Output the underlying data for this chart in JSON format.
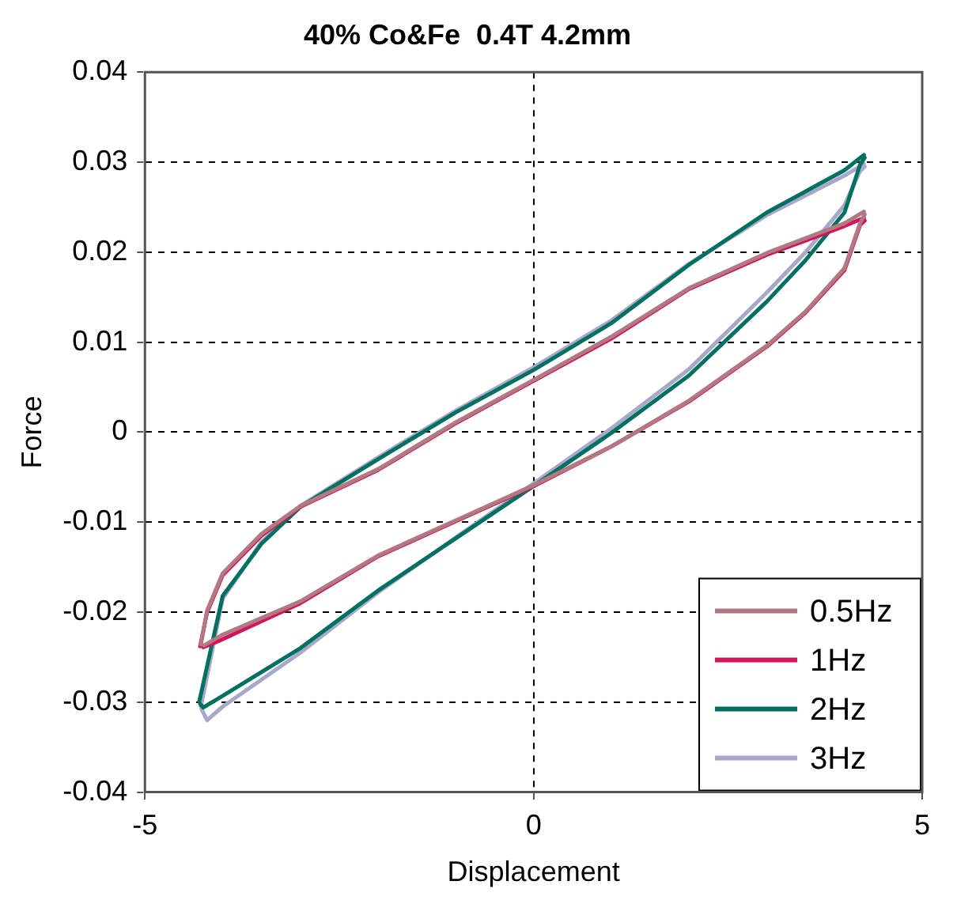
{
  "chart_data": {
    "type": "line",
    "title": "40% Co&Fe  0.4T 4.2mm",
    "xlabel": "Displacement",
    "ylabel": "Force",
    "xlim": [
      -5,
      5
    ],
    "xticks": [
      -5,
      0,
      5
    ],
    "ylim": [
      -0.04,
      0.04
    ],
    "yticks": [
      -0.04,
      -0.03,
      -0.02,
      -0.01,
      0,
      0.01,
      0.02,
      0.03,
      0.04
    ],
    "grid": true,
    "legend": "bottom right",
    "marker": "none",
    "line_style": "solid",
    "series": [
      {
        "name": "0.5Hz",
        "color": "#b07a80",
        "x": [
          -4.28,
          -4.2,
          -4,
          -3.5,
          -3,
          -2,
          -1,
          0,
          1,
          2,
          3,
          4,
          4.25
        ],
        "values": [
          -0.0236,
          -0.0198,
          -0.0157,
          -0.0113,
          -0.0082,
          -0.0041,
          0.0011,
          0.0058,
          0.0106,
          0.016,
          0.0199,
          0.0232,
          0.0245
        ]
      },
      {
        "color": "#b07a80",
        "x": [
          -4.24,
          -4,
          -3,
          -2,
          -1,
          0,
          1,
          2,
          3,
          3.5,
          4,
          4.2,
          4.26
        ],
        "values": [
          -0.0237,
          -0.0225,
          -0.0188,
          -0.0137,
          -0.0098,
          -0.0059,
          -0.0016,
          0.0035,
          0.0096,
          0.0134,
          0.0182,
          0.0232,
          0.0242
        ]
      },
      {
        "name": "1Hz",
        "color": "#d4145a",
        "x": [
          -4.29,
          -4.2,
          -4,
          -3.5,
          -3,
          -2,
          -1,
          0,
          1,
          2,
          3,
          4,
          4.25
        ],
        "values": [
          -0.0238,
          -0.02,
          -0.0159,
          -0.0115,
          -0.0083,
          -0.0042,
          0.001,
          0.0057,
          0.0104,
          0.0159,
          0.0197,
          0.0229,
          0.0238
        ]
      },
      {
        "color": "#d4145a",
        "x": [
          -4.25,
          -4.05,
          -3,
          -2,
          -1,
          0,
          1,
          2,
          3,
          3.5,
          4,
          4.2,
          4.26
        ],
        "values": [
          -0.0239,
          -0.0232,
          -0.019,
          -0.0138,
          -0.0099,
          -0.006,
          -0.0016,
          0.0034,
          0.0095,
          0.0133,
          0.018,
          0.023,
          0.0235
        ]
      },
      {
        "name": "2Hz",
        "color": "#007060",
        "x": [
          -4.3,
          -4,
          -3.5,
          -3,
          -2,
          -1,
          0,
          1,
          2,
          3,
          4,
          4.25
        ],
        "values": [
          -0.0299,
          -0.0182,
          -0.0124,
          -0.0083,
          -0.003,
          0.0022,
          0.0069,
          0.0121,
          0.0186,
          0.0244,
          0.0291,
          0.0308
        ]
      },
      {
        "color": "#007060",
        "x": [
          -4.29,
          -4.25,
          -4,
          -3,
          -2,
          -1,
          0,
          1,
          2,
          3,
          3.5,
          4,
          4.2,
          4.26
        ],
        "values": [
          -0.0302,
          -0.0306,
          -0.0293,
          -0.024,
          -0.0176,
          -0.0118,
          -0.006,
          -0.0001,
          0.0063,
          0.0145,
          0.0191,
          0.0244,
          0.0297,
          0.0305
        ]
      },
      {
        "name": "3Hz",
        "color": "#a8a8c8",
        "x": [
          -4.28,
          -4,
          -3.5,
          -3,
          -2,
          -1,
          0,
          1,
          2,
          3,
          4,
          4.25
        ],
        "values": [
          -0.0305,
          -0.0185,
          -0.0122,
          -0.0082,
          -0.0028,
          0.0024,
          0.0072,
          0.0124,
          0.0187,
          0.0241,
          0.0285,
          0.0298
        ]
      },
      {
        "color": "#a8a8c8",
        "x": [
          -4.27,
          -4.2,
          -4,
          -3,
          -2,
          -1,
          0,
          1,
          2,
          3,
          3.5,
          4,
          4.2,
          4.26
        ],
        "values": [
          -0.0308,
          -0.032,
          -0.0305,
          -0.0245,
          -0.0178,
          -0.0117,
          -0.0057,
          0.0004,
          0.007,
          0.0155,
          0.02,
          0.0252,
          0.029,
          0.0295
        ]
      }
    ]
  }
}
